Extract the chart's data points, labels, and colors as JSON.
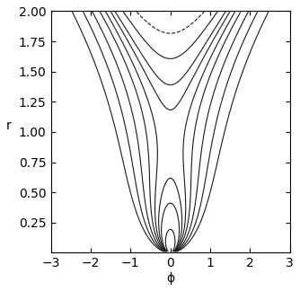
{
  "u_e0": 0.9,
  "xlim": [
    -3,
    3
  ],
  "ylim": [
    0,
    2
  ],
  "xlabel": "ϕ",
  "ylabel": "r",
  "xticks": [
    -3,
    -2,
    -1,
    0,
    1,
    2,
    3
  ],
  "yticks": [
    0.25,
    0.5,
    0.75,
    1.0,
    1.25,
    1.5,
    1.75,
    2.0
  ],
  "line_color": "#1a1a1a",
  "background_color": "#ffffff",
  "figsize": [
    3.34,
    3.24
  ],
  "dpi": 100,
  "open_offsets": [
    0.06,
    0.18,
    0.36,
    0.6,
    0.92
  ],
  "closed_offsets": [
    0.04,
    0.12,
    0.25,
    0.42
  ],
  "linewidth": 0.8
}
